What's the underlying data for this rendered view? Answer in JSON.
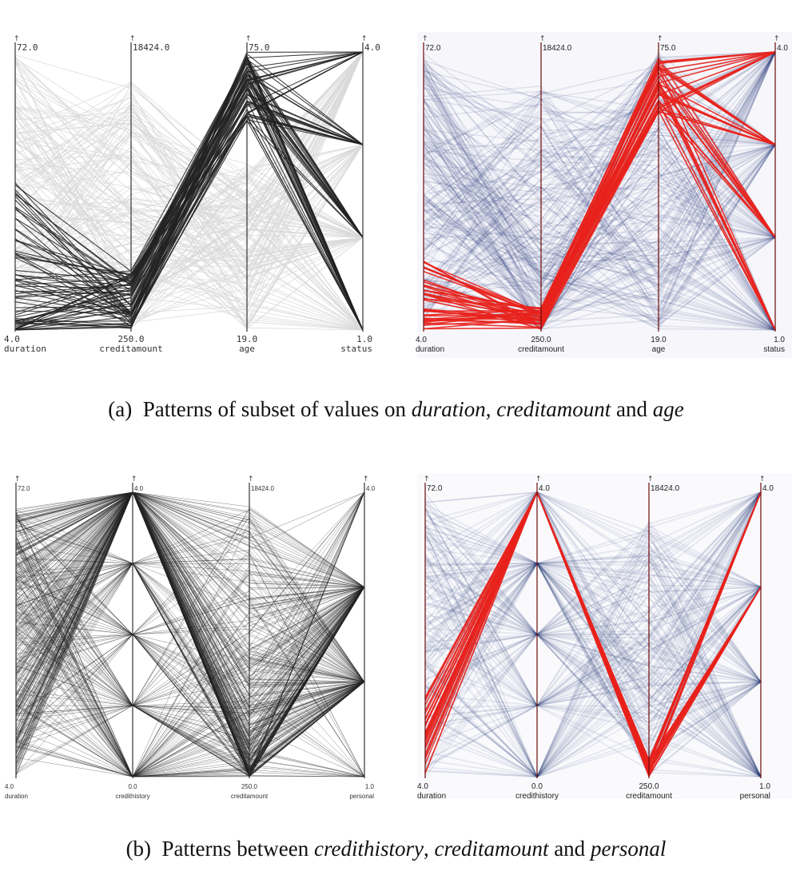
{
  "captions": {
    "a": {
      "prefix": "(a) Patterns of subset of values on ",
      "v1": "duration",
      "sep1": ", ",
      "v2": "creditamount",
      "sep2": " and ",
      "v3": "age"
    },
    "b": {
      "prefix": "(b) Patterns between ",
      "v1": "credithistory",
      "sep1": ", ",
      "v2": "creditamount",
      "sep2": " and ",
      "v3": "personal"
    }
  },
  "colors": {
    "highlight": "#e8211c",
    "context_blue": "#2a3a78",
    "dark_line": "#222222",
    "light_line": "#d9d9d9"
  },
  "chart_data": [
    {
      "type": "parallel-coordinates",
      "panel": "a-left",
      "style": "polylines",
      "axes": [
        {
          "name": "duration",
          "min": "4.0",
          "max": "72.0"
        },
        {
          "name": "creditamount",
          "min": "250.0",
          "max": "18424.0"
        },
        {
          "name": "age",
          "min": "19.0",
          "max": "75.0"
        },
        {
          "name": "status",
          "min": "1.0",
          "max": "4.0"
        }
      ],
      "highlighted_subset": "dark lines: low duration, low creditamount, high age, spread over status"
    },
    {
      "type": "parallel-coordinates",
      "panel": "a-right",
      "style": "density-bands",
      "axes": [
        {
          "name": "duration",
          "min": "4.0",
          "max": "72.0"
        },
        {
          "name": "creditamount",
          "min": "250.0",
          "max": "18424.0"
        },
        {
          "name": "age",
          "min": "19.0",
          "max": "75.0"
        },
        {
          "name": "status",
          "min": "1.0",
          "max": "4.0"
        }
      ],
      "highlighted_subset": "red band: low duration, low creditamount, high age"
    },
    {
      "type": "parallel-coordinates",
      "panel": "b-left",
      "style": "polylines",
      "axes": [
        {
          "name": "duration",
          "min": "4.0",
          "max": "72.0"
        },
        {
          "name": "credithistory",
          "min": "0.0",
          "max": "4.0"
        },
        {
          "name": "creditamount",
          "min": "250.0",
          "max": "18424.0"
        },
        {
          "name": "personal",
          "min": "1.0",
          "max": "4.0"
        }
      ]
    },
    {
      "type": "parallel-coordinates",
      "panel": "b-right",
      "style": "density-bands",
      "axes": [
        {
          "name": "duration",
          "min": "4.0",
          "max": "72.0"
        },
        {
          "name": "credithistory",
          "min": "0.0",
          "max": "4.0"
        },
        {
          "name": "creditamount",
          "min": "250.0",
          "max": "18424.0"
        },
        {
          "name": "personal",
          "min": "1.0",
          "max": "4.0"
        }
      ],
      "highlighted_subset": "red band: credithistory 4.0, low creditamount, personal 4.0 and 3.0"
    }
  ]
}
